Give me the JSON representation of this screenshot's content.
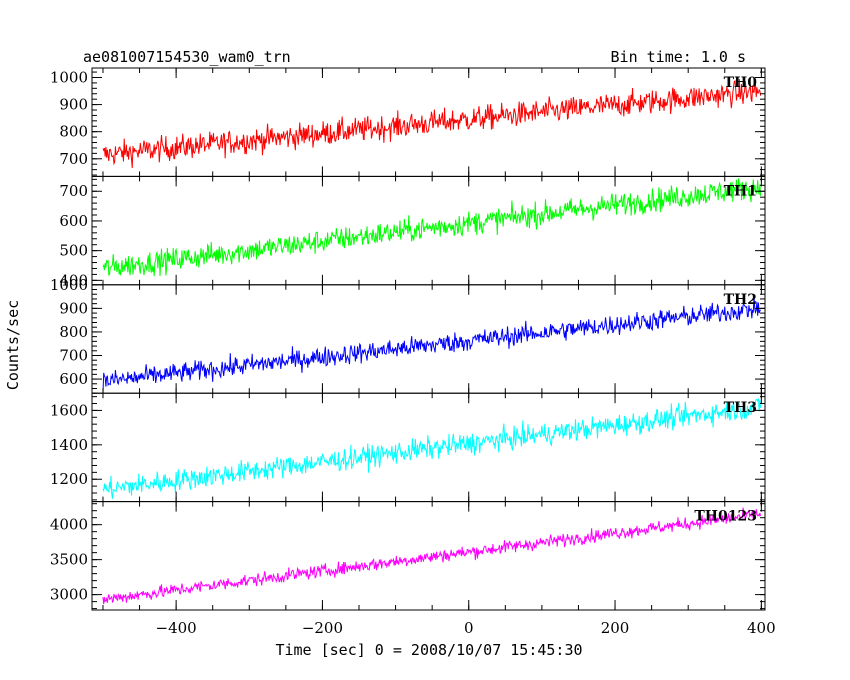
{
  "header": {
    "title": "ae081007154530_wam0_trn",
    "bin_time": "Bin time: 1.0 s"
  },
  "chart_data": {
    "type": "line",
    "ylabel": "Counts/sec",
    "xlabel": "Time [sec] 0 = 2008/10/07 15:45:30",
    "xlim": [
      -515,
      405
    ],
    "x_ticks": [
      -400,
      -200,
      0,
      200,
      400
    ],
    "x_tick_labels": [
      "−400",
      "−200",
      "0",
      "200",
      "400"
    ],
    "x_start": -500,
    "x_end": 399,
    "x_step": 1,
    "series": [
      {
        "name": "TH0",
        "color": "#ff0000",
        "ylim": [
          635,
          1035
        ],
        "y_ticks": [
          700,
          800,
          900,
          1000
        ],
        "y_tick_labels": [
          "700",
          "800",
          "900",
          "1000"
        ],
        "start_mean": 715,
        "end_mean": 950,
        "noise": 32
      },
      {
        "name": "TH1",
        "color": "#00ff00",
        "ylim": [
          385,
          750
        ],
        "y_ticks": [
          400,
          500,
          600,
          700
        ],
        "y_tick_labels": [
          "400",
          "500",
          "600",
          "700"
        ],
        "start_mean": 440,
        "end_mean": 715,
        "noise": 28
      },
      {
        "name": "TH2",
        "color": "#0000ff",
        "ylim": [
          540,
          1000
        ],
        "y_ticks": [
          600,
          700,
          800,
          900,
          1000
        ],
        "y_tick_labels": [
          "600",
          "700",
          "800",
          "900",
          "1000"
        ],
        "start_mean": 590,
        "end_mean": 900,
        "noise": 30
      },
      {
        "name": "TH3",
        "color": "#00ffff",
        "ylim": [
          1070,
          1700
        ],
        "y_ticks": [
          1200,
          1400,
          1600
        ],
        "y_tick_labels": [
          "1200",
          "1400",
          "1600"
        ],
        "start_mean": 1140,
        "end_mean": 1620,
        "noise": 45
      },
      {
        "name": "TH0123",
        "color": "#ff00ff",
        "ylim": [
          2780,
          4330
        ],
        "y_ticks": [
          3000,
          3500,
          4000
        ],
        "y_tick_labels": [
          "3000",
          "3500",
          "4000"
        ],
        "start_mean": 2930,
        "end_mean": 4150,
        "noise": 65
      }
    ]
  }
}
